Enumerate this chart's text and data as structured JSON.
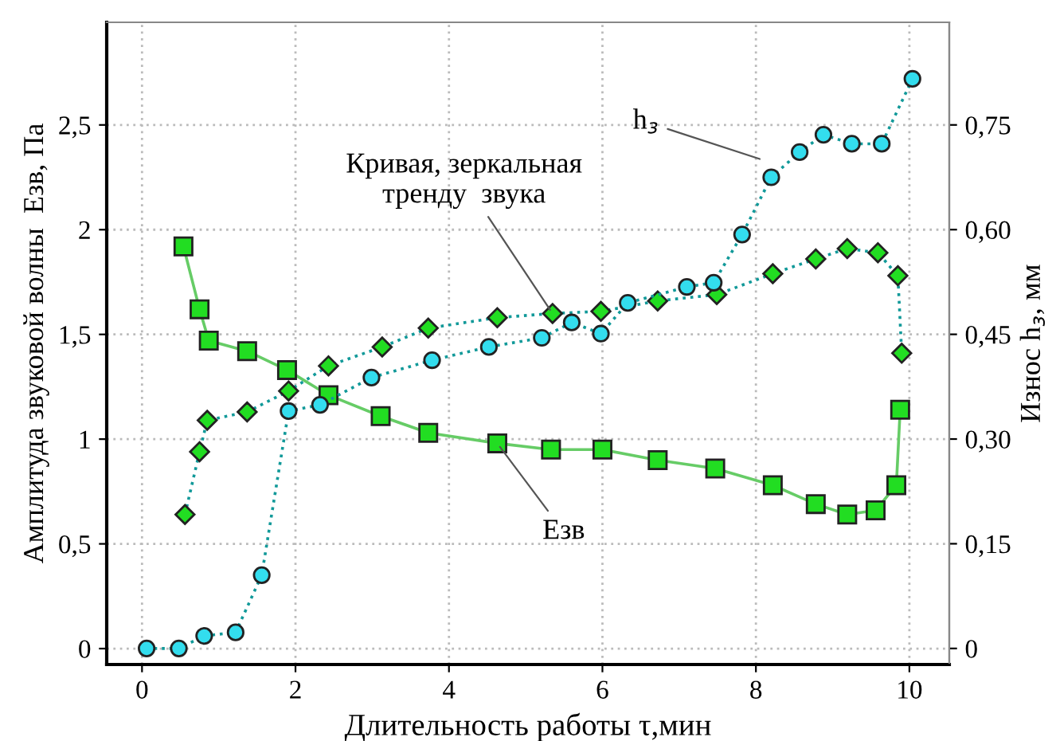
{
  "chart_data": {
    "type": "line",
    "xlabel": "Длительность работы τ,мин",
    "ylabel": "Амплитуда звуковой волны  Eзв, Па",
    "y2label": "Износ h$_{з}$, мм",
    "xlim": [
      -0.46,
      10.52
    ],
    "ylim": [
      -0.076,
      2.99
    ],
    "y2lim": [
      -0.023,
      0.897
    ],
    "xticks": [
      0,
      2,
      4,
      6,
      8,
      10
    ],
    "yticks": [
      0,
      {
        "value": 0.5,
        "label": "0,5"
      },
      1,
      {
        "value": 1.5,
        "label": "1,5"
      },
      2,
      {
        "value": 2.5,
        "label": "2,5"
      }
    ],
    "y2ticks": [
      0,
      {
        "value": 0.15,
        "label": "0,15"
      },
      {
        "value": 0.3,
        "label": "0,30"
      },
      {
        "value": 0.45,
        "label": "0,45"
      },
      {
        "value": 0.6,
        "label": "0,60"
      },
      {
        "value": 0.75,
        "label": "0,75"
      }
    ],
    "grid": true,
    "series": [
      {
        "color": "#22dd22",
        "marker": "square",
        "line_style": "solid",
        "x": [
          0.54,
          0.75,
          0.87,
          1.37,
          1.89,
          2.43,
          3.11,
          3.73,
          4.63,
          5.33,
          6.0,
          6.72,
          7.47,
          8.22,
          8.78,
          9.19,
          9.56,
          9.83,
          9.88
        ],
        "values": [
          1.92,
          1.62,
          1.47,
          1.42,
          1.33,
          1.21,
          1.11,
          1.03,
          0.98,
          0.95,
          0.95,
          0.9,
          0.86,
          0.78,
          0.69,
          0.64,
          0.66,
          0.78,
          1.14
        ]
      },
      {
        "color": "#22dd22",
        "marker": "diamond",
        "line_style": "dotted",
        "x": [
          0.56,
          0.75,
          0.85,
          1.37,
          1.91,
          2.43,
          3.13,
          3.73,
          4.63,
          5.35,
          5.98,
          6.72,
          7.49,
          8.22,
          8.78,
          9.19,
          9.59,
          9.85,
          9.9
        ],
        "values": [
          0.64,
          0.94,
          1.09,
          1.13,
          1.23,
          1.35,
          1.44,
          1.53,
          1.58,
          1.6,
          1.61,
          1.66,
          1.69,
          1.79,
          1.86,
          1.91,
          1.89,
          1.78,
          1.41
        ]
      },
      {
        "color": "#33ddee",
        "marker": "circle",
        "line_style": "dotted",
        "axis": "y2",
        "x": [
          0.06,
          0.48,
          0.81,
          1.22,
          1.56,
          1.91,
          2.32,
          2.99,
          3.78,
          4.52,
          5.21,
          5.6,
          5.98,
          6.33,
          7.1,
          7.45,
          7.82,
          8.2,
          8.57,
          8.88,
          9.25,
          9.64,
          10.04
        ],
        "values": [
          0,
          0,
          0.018,
          0.023,
          0.105,
          0.34,
          0.349,
          0.388,
          0.413,
          0.432,
          0.445,
          0.467,
          0.451,
          0.495,
          0.518,
          0.524,
          0.593,
          0.675,
          0.711,
          0.736,
          0.723,
          0.723,
          0.816
        ]
      }
    ],
    "annotations": [
      {
        "text": "Eзв",
        "x": 4.63,
        "y": 0.98
      },
      {
        "text": "Кривая, зеркальная\nтренду  звука",
        "x": 5.35,
        "y": 1.6
      },
      "h$_{з}$"
    ]
  }
}
